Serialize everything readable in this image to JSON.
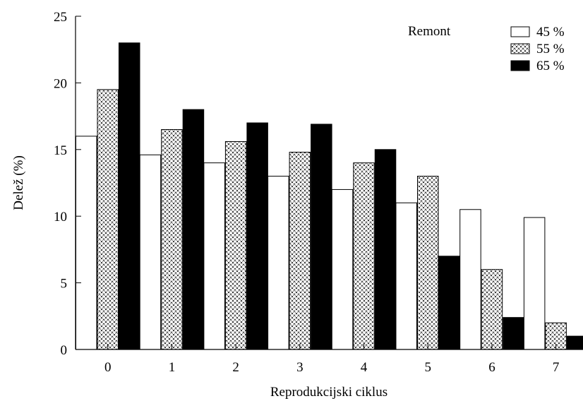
{
  "chart_data": {
    "type": "bar",
    "title": "",
    "xlabel": "Reprodukcijski ciklus",
    "ylabel": "Delež (%)",
    "categories": [
      "0",
      "1",
      "2",
      "3",
      "4",
      "5",
      "6",
      "7"
    ],
    "ylim": [
      0,
      25
    ],
    "yticks": [
      "0",
      "5",
      "10",
      "15",
      "20",
      "25"
    ],
    "grid": false,
    "legend": {
      "title": "Remont",
      "placement": "top-right"
    },
    "series": [
      {
        "name": "45 %",
        "fill": "white",
        "values": [
          16.0,
          14.6,
          14.0,
          13.0,
          12.0,
          11.0,
          10.5,
          9.9
        ]
      },
      {
        "name": "55 %",
        "fill": "crosshatch",
        "values": [
          19.5,
          16.5,
          15.6,
          14.8,
          14.0,
          13.0,
          6.0,
          2.0
        ]
      },
      {
        "name": "65 %",
        "fill": "black",
        "values": [
          23.0,
          18.0,
          17.0,
          16.9,
          15.0,
          7.0,
          2.4,
          1.0
        ]
      }
    ]
  }
}
